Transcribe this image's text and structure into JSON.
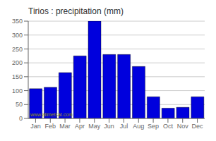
{
  "chart_data": {
    "type": "bar",
    "title": "Tirios : precipitation (mm)",
    "categories": [
      "Jan",
      "Feb",
      "Mar",
      "Apr",
      "May",
      "Jun",
      "Jul",
      "Aug",
      "Sep",
      "Oct",
      "Nov",
      "Dec"
    ],
    "values": [
      107,
      112,
      165,
      225,
      350,
      230,
      230,
      187,
      78,
      37,
      40,
      78
    ],
    "color": "#0000dd",
    "ylim": [
      0,
      350
    ],
    "yticks": [
      0,
      50,
      100,
      150,
      200,
      250,
      300,
      350
    ],
    "grid": true,
    "annotations": [
      "www.allmetsat.com"
    ]
  }
}
